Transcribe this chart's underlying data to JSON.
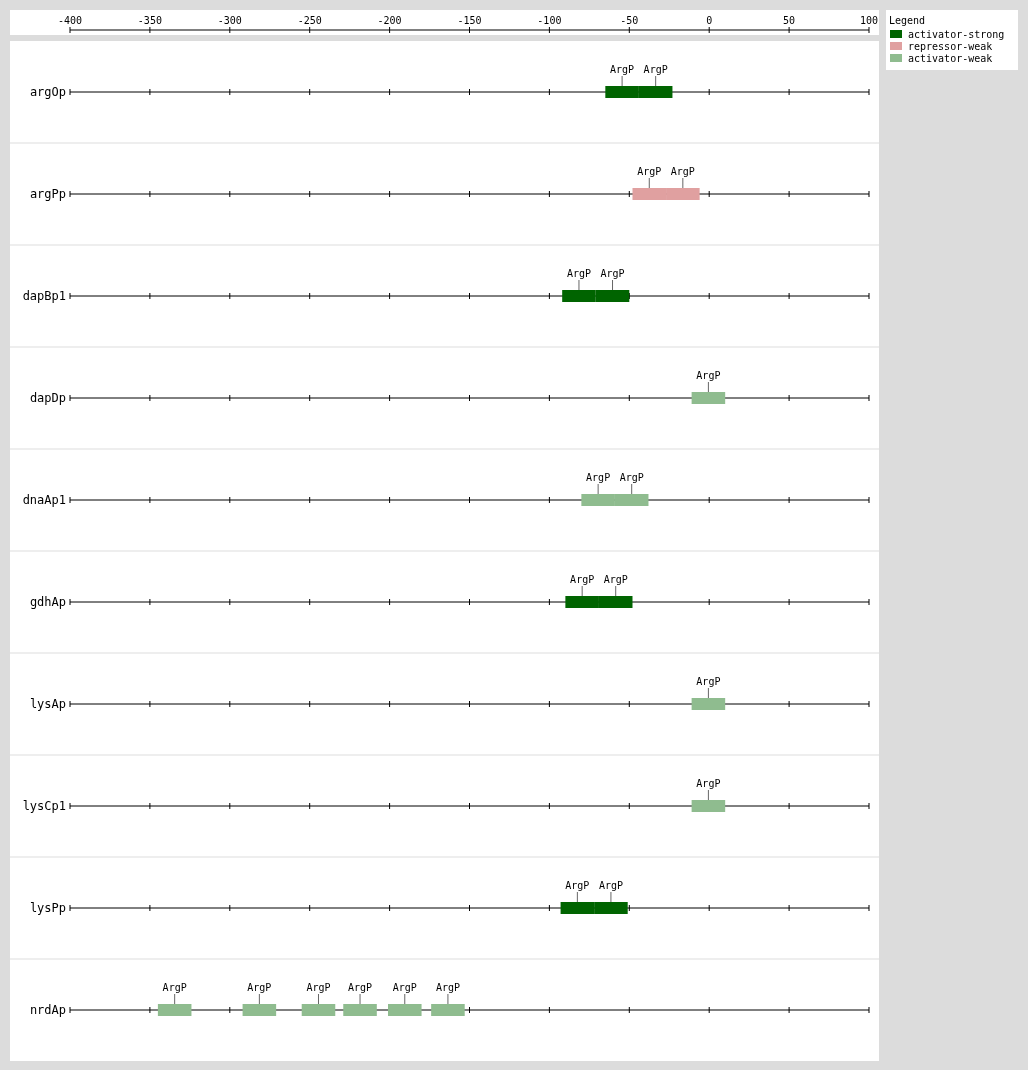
{
  "chart_data": {
    "type": "bar",
    "orientation": "horizontal",
    "legend_title": "Legend",
    "legend": "top right",
    "grid": "y",
    "categories": [
      "argOp",
      "argPp",
      "dapBp1",
      "dapDp",
      "dnaAp1",
      "gdhAp",
      "lysAp",
      "lysCp1",
      "lysPp",
      "nrdAp"
    ],
    "xlim": [
      -400,
      100
    ],
    "xticks": [
      -400,
      -350,
      -300,
      -250,
      -200,
      -150,
      -100,
      -50,
      0,
      50,
      100
    ],
    "series": [
      {
        "name": "activator-strong",
        "color": "#006400",
        "values": [
          21,
          null,
          21,
          null,
          null,
          21,
          null,
          null,
          21,
          null
        ],
        "base": [
          -65,
          null,
          -92,
          null,
          null,
          -90,
          null,
          null,
          -93,
          null
        ],
        "value_labels": [
          "ArgP",
          null,
          "ArgP",
          null,
          null,
          "ArgP",
          null,
          null,
          "ArgP",
          null
        ]
      },
      {
        "color": "#006400",
        "values": [
          21,
          null,
          21,
          null,
          null,
          21,
          null,
          null,
          21,
          null
        ],
        "base": [
          -44,
          null,
          -71,
          null,
          null,
          -69,
          null,
          null,
          -72,
          null
        ],
        "value_labels": [
          "ArgP",
          null,
          "ArgP",
          null,
          null,
          "ArgP",
          null,
          null,
          "ArgP",
          null
        ]
      },
      {
        "name": "repressor-weak",
        "color": "#e0a0a0",
        "values": [
          null,
          21,
          null,
          null,
          null,
          null,
          null,
          null,
          null,
          null
        ],
        "base": [
          null,
          -48,
          null,
          null,
          null,
          null,
          null,
          null,
          null,
          null
        ],
        "value_labels": [
          null,
          "ArgP",
          null,
          null,
          null,
          null,
          null,
          null,
          null,
          null
        ]
      },
      {
        "color": "#e0a0a0",
        "values": [
          null,
          21,
          null,
          null,
          null,
          null,
          null,
          null,
          null,
          null
        ],
        "base": [
          null,
          -27,
          null,
          null,
          null,
          null,
          null,
          null,
          null,
          null
        ],
        "value_labels": [
          null,
          "ArgP",
          null,
          null,
          null,
          null,
          null,
          null,
          null,
          null
        ]
      },
      {
        "name": "activator-weak",
        "color": "#8fbc8f",
        "values": [
          null,
          null,
          null,
          21,
          21,
          null,
          21,
          21,
          null,
          21
        ],
        "base": [
          null,
          null,
          null,
          -11,
          -80,
          null,
          -11,
          -11,
          null,
          -345
        ],
        "value_labels": [
          null,
          null,
          null,
          "ArgP",
          "ArgP",
          null,
          "ArgP",
          "ArgP",
          null,
          "ArgP"
        ]
      },
      {
        "color": "#8fbc8f",
        "values": [
          null,
          null,
          null,
          null,
          21,
          null,
          null,
          null,
          null,
          21
        ],
        "base": [
          null,
          null,
          null,
          null,
          -59,
          null,
          null,
          null,
          null,
          -292
        ],
        "value_labels": [
          null,
          null,
          null,
          null,
          "ArgP",
          null,
          null,
          null,
          null,
          "ArgP"
        ]
      },
      {
        "color": "#8fbc8f",
        "values": [
          null,
          null,
          null,
          null,
          null,
          null,
          null,
          null,
          null,
          21
        ],
        "base": [
          null,
          null,
          null,
          null,
          null,
          null,
          null,
          null,
          null,
          -255
        ],
        "value_labels": [
          null,
          null,
          null,
          null,
          null,
          null,
          null,
          null,
          null,
          "ArgP"
        ]
      },
      {
        "color": "#8fbc8f",
        "values": [
          null,
          null,
          null,
          null,
          null,
          null,
          null,
          null,
          null,
          21
        ],
        "base": [
          null,
          null,
          null,
          null,
          null,
          null,
          null,
          null,
          null,
          -229
        ],
        "value_labels": [
          null,
          null,
          null,
          null,
          null,
          null,
          null,
          null,
          null,
          "ArgP"
        ]
      },
      {
        "color": "#8fbc8f",
        "values": [
          null,
          null,
          null,
          null,
          null,
          null,
          null,
          null,
          null,
          21
        ],
        "base": [
          null,
          null,
          null,
          null,
          null,
          null,
          null,
          null,
          null,
          -201
        ],
        "value_labels": [
          null,
          null,
          null,
          null,
          null,
          null,
          null,
          null,
          null,
          "ArgP"
        ]
      },
      {
        "color": "#8fbc8f",
        "values": [
          null,
          null,
          null,
          null,
          null,
          null,
          null,
          null,
          null,
          21
        ],
        "base": [
          null,
          null,
          null,
          null,
          null,
          null,
          null,
          null,
          null,
          -174
        ],
        "value_labels": [
          null,
          null,
          null,
          null,
          null,
          null,
          null,
          null,
          null,
          "ArgP"
        ]
      }
    ]
  }
}
